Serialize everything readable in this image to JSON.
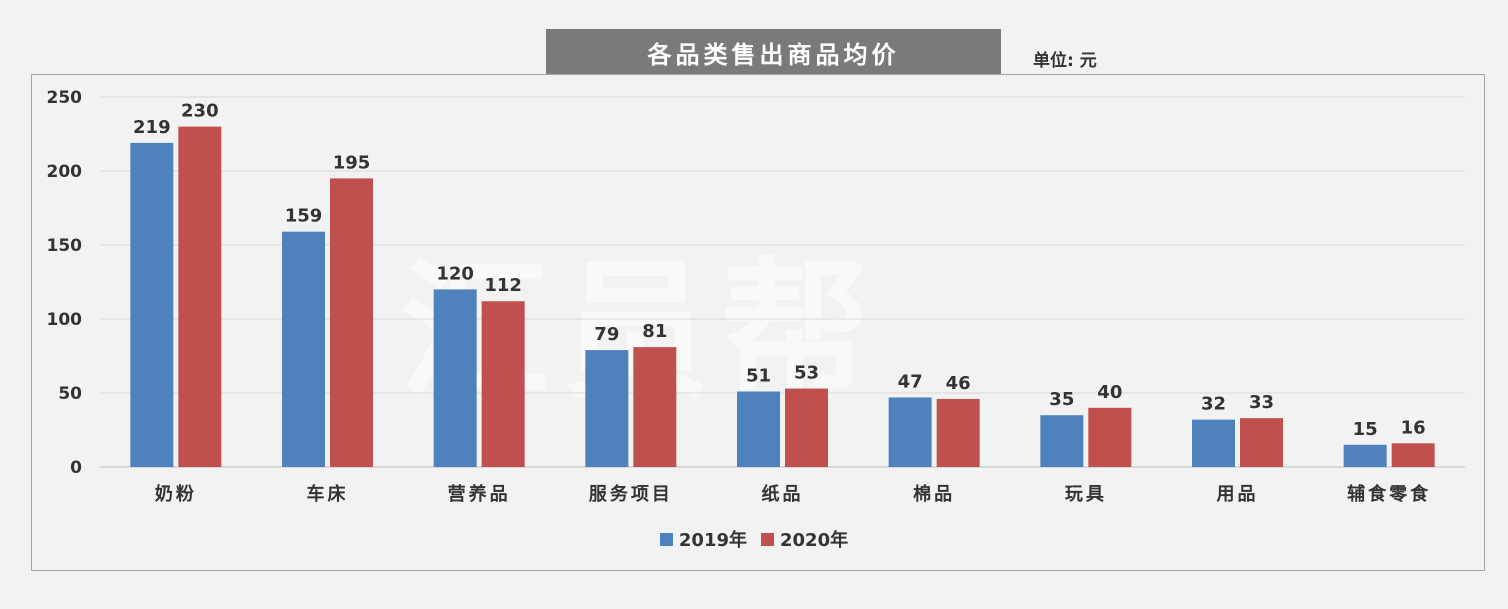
{
  "title": "各品类售出商品均价",
  "unit": "单位: 元",
  "watermark": "汇员帮",
  "colors": {
    "series_2019": "#4f81bd",
    "series_2020": "#c0504d",
    "grid": "#d9d9d9",
    "axis_text": "#333333"
  },
  "chart_data": {
    "type": "bar",
    "categories": [
      "奶粉",
      "车床",
      "营养品",
      "服务项目",
      "纸品",
      "棉品",
      "玩具",
      "用品",
      "辅食零食"
    ],
    "series": [
      {
        "name": "2019年",
        "values": [
          219,
          159,
          120,
          79,
          51,
          47,
          35,
          32,
          15
        ]
      },
      {
        "name": "2020年",
        "values": [
          230,
          195,
          112,
          81,
          53,
          46,
          40,
          33,
          16
        ]
      }
    ],
    "yticks": [
      0,
      50,
      100,
      150,
      200,
      250
    ],
    "ylim": [
      0,
      250
    ],
    "grid": true,
    "legend_position": "bottom",
    "title": "各品类售出商品均价",
    "xlabel": "",
    "ylabel": ""
  }
}
